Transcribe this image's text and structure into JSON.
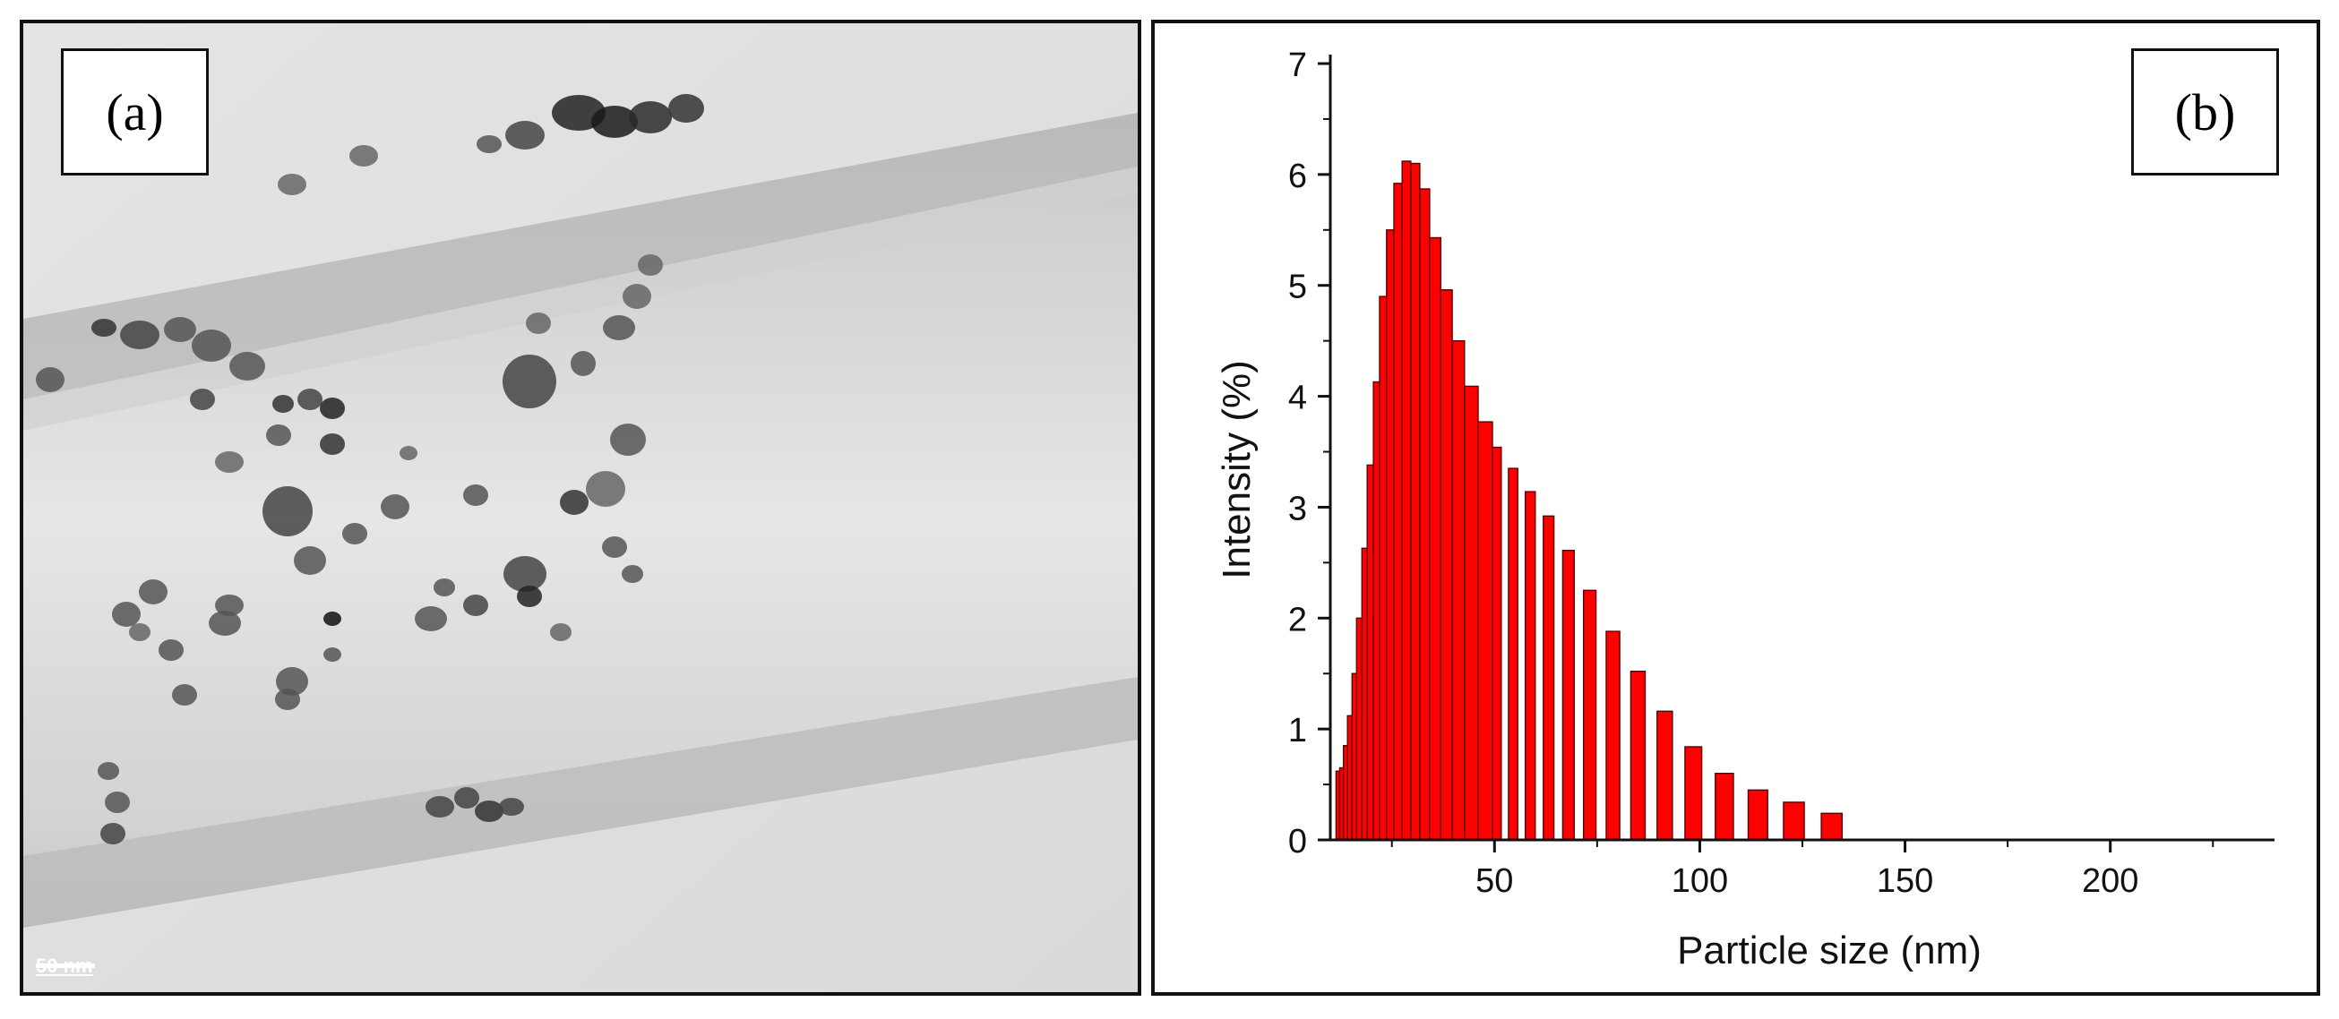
{
  "panel_a": {
    "label": "(a)",
    "scale_bar": "50 nm"
  },
  "panel_b": {
    "label": "(b)"
  },
  "chart_data": {
    "type": "bar",
    "title": "",
    "xlabel": "Particle size (nm)",
    "ylabel": "Intensity (%)",
    "xlim": [
      10,
      240
    ],
    "ylim": [
      0,
      7
    ],
    "xticks": [
      50,
      100,
      150,
      200
    ],
    "yticks": [
      0,
      1,
      2,
      3,
      4,
      5,
      6,
      7
    ],
    "bar_color": "#ff0000",
    "grid": false,
    "legend": "none",
    "bars": [
      {
        "x": 11.4,
        "y": 0.62
      },
      {
        "x": 12.3,
        "y": 0.65
      },
      {
        "x": 13.2,
        "y": 0.85
      },
      {
        "x": 14.2,
        "y": 1.12
      },
      {
        "x": 15.3,
        "y": 1.5
      },
      {
        "x": 16.4,
        "y": 2.0
      },
      {
        "x": 17.7,
        "y": 2.63
      },
      {
        "x": 19.0,
        "y": 3.38
      },
      {
        "x": 20.5,
        "y": 4.13
      },
      {
        "x": 22.0,
        "y": 4.9
      },
      {
        "x": 23.7,
        "y": 5.5
      },
      {
        "x": 25.5,
        "y": 5.92
      },
      {
        "x": 27.5,
        "y": 6.12
      },
      {
        "x": 29.6,
        "y": 6.1
      },
      {
        "x": 31.8,
        "y": 5.87
      },
      {
        "x": 34.2,
        "y": 5.43
      },
      {
        "x": 36.9,
        "y": 4.96
      },
      {
        "x": 39.7,
        "y": 4.5
      },
      {
        "x": 42.7,
        "y": 4.09
      },
      {
        "x": 46.0,
        "y": 3.77
      },
      {
        "x": 49.5,
        "y": 3.54
      },
      {
        "x": 53.4,
        "y": 3.35
      },
      {
        "x": 57.5,
        "y": 3.14
      },
      {
        "x": 61.9,
        "y": 2.92
      },
      {
        "x": 66.6,
        "y": 2.61
      },
      {
        "x": 71.7,
        "y": 2.25
      },
      {
        "x": 77.2,
        "y": 1.88
      },
      {
        "x": 83.2,
        "y": 1.52
      },
      {
        "x": 89.6,
        "y": 1.16
      },
      {
        "x": 96.4,
        "y": 0.84
      },
      {
        "x": 103.8,
        "y": 0.6
      },
      {
        "x": 111.8,
        "y": 0.45
      },
      {
        "x": 120.4,
        "y": 0.34
      },
      {
        "x": 129.6,
        "y": 0.24
      }
    ]
  }
}
